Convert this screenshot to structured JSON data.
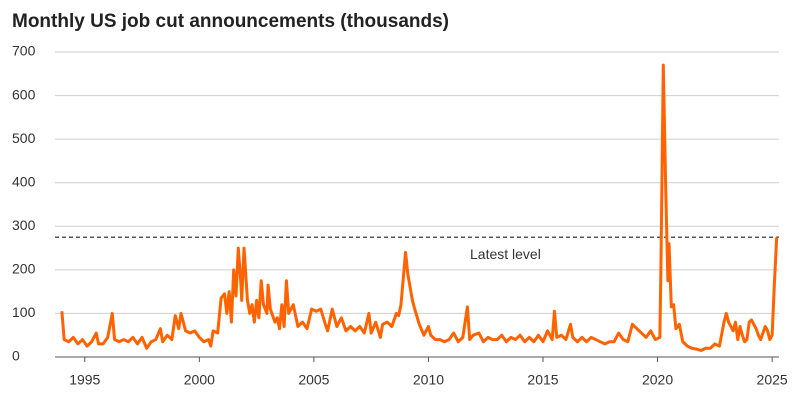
{
  "chart_data": {
    "type": "line",
    "title": "Monthly US job cut announcements (thousands)",
    "annotation": "Latest level",
    "reference_line": 275,
    "xlim": [
      1993.7,
      2025.3
    ],
    "xticks": [
      1995,
      2000,
      2005,
      2010,
      2015,
      2020,
      2025
    ],
    "ylim": [
      0,
      700
    ],
    "yticks": [
      0,
      100,
      200,
      300,
      400,
      500,
      600,
      700
    ],
    "grid": true,
    "x": [
      1994.0,
      1994.1,
      1994.3,
      1994.5,
      1994.7,
      1994.9,
      1995.1,
      1995.3,
      1995.5,
      1995.6,
      1995.8,
      1996.0,
      1996.2,
      1996.3,
      1996.5,
      1996.7,
      1996.9,
      1997.1,
      1997.3,
      1997.5,
      1997.7,
      1997.9,
      1998.1,
      1998.3,
      1998.4,
      1998.6,
      1998.8,
      1998.95,
      1999.1,
      1999.2,
      1999.4,
      1999.6,
      1999.8,
      2000.0,
      2000.2,
      2000.4,
      2000.5,
      2000.6,
      2000.8,
      2000.95,
      2001.1,
      2001.2,
      2001.3,
      2001.4,
      2001.5,
      2001.6,
      2001.7,
      2001.8,
      2001.85,
      2001.95,
      2002.1,
      2002.2,
      2002.3,
      2002.4,
      2002.5,
      2002.6,
      2002.7,
      2002.8,
      2002.95,
      2003.0,
      2003.1,
      2003.3,
      2003.4,
      2003.5,
      2003.6,
      2003.7,
      2003.8,
      2003.9,
      2004.1,
      2004.3,
      2004.5,
      2004.7,
      2004.9,
      2005.1,
      2005.3,
      2005.5,
      2005.6,
      2005.8,
      2006.0,
      2006.2,
      2006.4,
      2006.6,
      2006.8,
      2007.0,
      2007.2,
      2007.4,
      2007.5,
      2007.7,
      2007.9,
      2008.0,
      2008.2,
      2008.4,
      2008.6,
      2008.7,
      2008.8,
      2008.9,
      2009.0,
      2009.1,
      2009.3,
      2009.4,
      2009.6,
      2009.8,
      2010.0,
      2010.1,
      2010.3,
      2010.5,
      2010.7,
      2010.9,
      2011.1,
      2011.3,
      2011.5,
      2011.7,
      2011.8,
      2011.95,
      2012.2,
      2012.4,
      2012.6,
      2012.8,
      2013.0,
      2013.2,
      2013.4,
      2013.6,
      2013.8,
      2014.0,
      2014.2,
      2014.4,
      2014.6,
      2014.8,
      2015.0,
      2015.2,
      2015.4,
      2015.5,
      2015.6,
      2015.8,
      2016.0,
      2016.2,
      2016.3,
      2016.5,
      2016.7,
      2016.9,
      2017.1,
      2017.3,
      2017.5,
      2017.7,
      2017.9,
      2018.1,
      2018.3,
      2018.5,
      2018.7,
      2018.9,
      2019.1,
      2019.3,
      2019.5,
      2019.7,
      2019.9,
      2020.1,
      2020.15,
      2020.25,
      2020.35,
      2020.45,
      2020.5,
      2020.6,
      2020.7,
      2020.8,
      2020.95,
      2021.1,
      2021.3,
      2021.5,
      2021.7,
      2021.9,
      2022.1,
      2022.3,
      2022.5,
      2022.7,
      2022.9,
      2023.0,
      2023.1,
      2023.3,
      2023.4,
      2023.5,
      2023.6,
      2023.7,
      2023.8,
      2023.9,
      2024.0,
      2024.1,
      2024.3,
      2024.4,
      2024.5,
      2024.7,
      2024.8,
      2024.9,
      2025.0,
      2025.1,
      2025.2
    ],
    "series": [
      {
        "color": "#ff6200",
        "values": [
          105,
          40,
          35,
          45,
          30,
          40,
          25,
          35,
          55,
          30,
          30,
          45,
          100,
          40,
          35,
          40,
          35,
          45,
          30,
          45,
          20,
          35,
          40,
          65,
          35,
          50,
          40,
          95,
          65,
          100,
          60,
          55,
          60,
          45,
          35,
          40,
          25,
          60,
          55,
          135,
          145,
          100,
          150,
          80,
          200,
          140,
          250,
          180,
          130,
          250,
          130,
          100,
          120,
          80,
          130,
          90,
          175,
          120,
          100,
          165,
          110,
          80,
          90,
          65,
          120,
          70,
          175,
          100,
          120,
          70,
          80,
          65,
          110,
          105,
          110,
          75,
          60,
          110,
          70,
          90,
          60,
          70,
          60,
          70,
          55,
          100,
          55,
          80,
          45,
          75,
          80,
          70,
          100,
          95,
          120,
          180,
          240,
          190,
          130,
          110,
          75,
          50,
          70,
          50,
          40,
          40,
          35,
          40,
          55,
          35,
          45,
          115,
          40,
          50,
          55,
          35,
          45,
          40,
          40,
          50,
          35,
          45,
          40,
          50,
          35,
          45,
          35,
          50,
          35,
          60,
          40,
          105,
          45,
          50,
          40,
          75,
          45,
          35,
          45,
          35,
          45,
          40,
          35,
          30,
          35,
          35,
          55,
          40,
          35,
          75,
          65,
          55,
          45,
          60,
          40,
          45,
          220,
          670,
          400,
          175,
          260,
          115,
          120,
          65,
          75,
          35,
          25,
          20,
          18,
          15,
          20,
          20,
          30,
          25,
          80,
          100,
          80,
          60,
          80,
          40,
          70,
          50,
          35,
          40,
          80,
          85,
          65,
          50,
          40,
          70,
          60,
          40,
          50,
          170,
          275
        ]
      }
    ]
  }
}
